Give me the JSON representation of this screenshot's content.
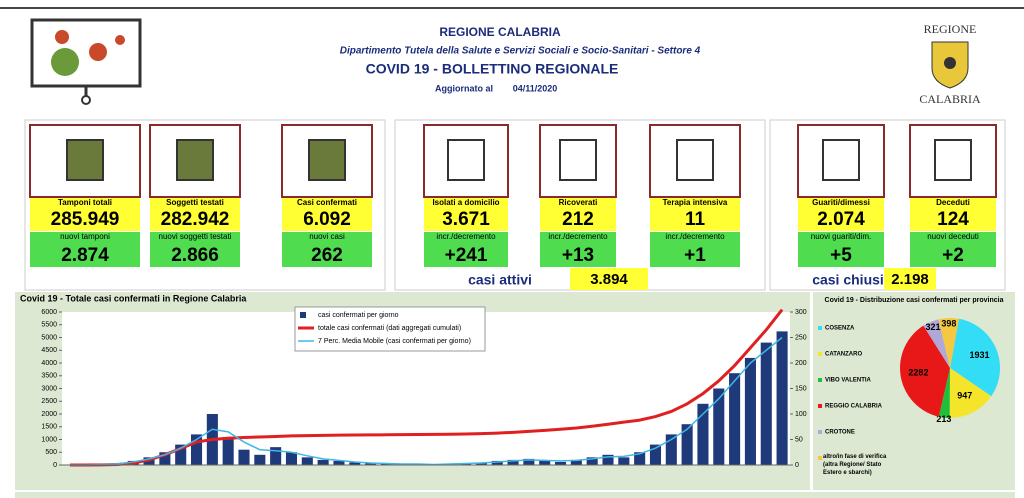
{
  "header": {
    "region": "REGIONE CALABRIA",
    "department": "Dipartimento Tutela della Salute e Servizi Sociali e Socio-Sanitari - Settore 4",
    "title": "COVID 19 - BOLLETTINO REGIONALE",
    "updated_label": "Aggiornato al",
    "updated_date": "04/11/2020",
    "logo_top": "REGIONE",
    "logo_bottom": "CALABRIA"
  },
  "cards": [
    {
      "label": "Tamponi totali",
      "value": "285.949",
      "sublabel": "nuovi tamponi",
      "subvalue": "2.874"
    },
    {
      "label": "Soggetti testati",
      "value": "282.942",
      "sublabel": "nuovi soggetti testati",
      "subvalue": "2.866"
    },
    {
      "label": "Casi confermati",
      "value": "6.092",
      "sublabel": "nuovi casi",
      "subvalue": "262"
    },
    {
      "label": "Isolati a domicilio",
      "value": "3.671",
      "sublabel": "incr./decremento",
      "subvalue": "+241"
    },
    {
      "label": "Ricoverati",
      "value": "212",
      "sublabel": "incr./decremento",
      "subvalue": "+13"
    },
    {
      "label": "Terapia intensiva",
      "value": "11",
      "sublabel": "incr./decremento",
      "subvalue": "+1"
    },
    {
      "label": "Guariti/dimessi",
      "value": "2.074",
      "sublabel": "nuovi guariti/dim.",
      "subvalue": "+5"
    },
    {
      "label": "Deceduti",
      "value": "124",
      "sublabel": "nuovi deceduti",
      "subvalue": "+2"
    }
  ],
  "active": {
    "label": "casi attivi",
    "value": "3.894"
  },
  "closed": {
    "label": "casi chiusi",
    "value": "2.198"
  },
  "chart_data": [
    {
      "type": "bar-line",
      "title": "Covid 19 - Totale casi confermati in Regione Calabria",
      "ylim": [
        0,
        6000
      ],
      "yticks": [
        0,
        500,
        1000,
        1500,
        2000,
        2500,
        3000,
        3500,
        4000,
        4500,
        5000,
        5500,
        6000
      ],
      "y2lim": [
        0,
        300
      ],
      "y2ticks": [
        0,
        50,
        100,
        150,
        200,
        250,
        300
      ],
      "series": [
        {
          "name": "casi confermati per giorno",
          "type": "bar",
          "axis": "y2",
          "color": "#1f3a7a",
          "values": [
            0,
            0,
            1,
            3,
            8,
            15,
            25,
            40,
            60,
            100,
            55,
            30,
            20,
            35,
            25,
            15,
            10,
            8,
            5,
            3,
            2,
            2,
            1,
            1,
            2,
            3,
            5,
            8,
            10,
            12,
            8,
            6,
            10,
            15,
            20,
            15,
            25,
            40,
            60,
            80,
            120,
            150,
            180,
            210,
            240,
            262
          ]
        },
        {
          "name": "totale casi confermati (dati aggregati cumulati)",
          "type": "line",
          "color": "#e02020",
          "values": [
            0,
            0,
            5,
            20,
            80,
            200,
            400,
            650,
            900,
            1000,
            1050,
            1080,
            1100,
            1120,
            1140,
            1150,
            1160,
            1170,
            1175,
            1180,
            1185,
            1190,
            1195,
            1200,
            1205,
            1215,
            1230,
            1250,
            1280,
            1320,
            1360,
            1400,
            1450,
            1520,
            1600,
            1680,
            1760,
            1900,
            2100,
            2400,
            2800,
            3300,
            3900,
            4600,
            5300,
            6092
          ]
        },
        {
          "name": "7 Perc. Media Mobile (casi confermati per giorno)",
          "type": "line",
          "axis": "y2",
          "color": "#41b6e6",
          "values": [
            0,
            0,
            1,
            2,
            6,
            12,
            20,
            33,
            50,
            70,
            65,
            45,
            30,
            28,
            25,
            18,
            12,
            9,
            6,
            4,
            3,
            2,
            2,
            1,
            2,
            3,
            4,
            6,
            8,
            10,
            9,
            8,
            9,
            12,
            16,
            17,
            22,
            33,
            50,
            70,
            100,
            130,
            165,
            200,
            225,
            250
          ]
        }
      ]
    },
    {
      "type": "pie",
      "title": "Covid 19 - Distribuzione casi confermati per provincia",
      "categories": [
        "COSENZA",
        "CATANZARO",
        "VIBO VALENTIA",
        "REGGIO CALABRIA",
        "CROTONE",
        "altro/in fase di verifica (altra Regione/ Stato Estero e sbarchi)"
      ],
      "colors": [
        "#33ddf5",
        "#f5e52a",
        "#1fbf3a",
        "#e81818",
        "#b0a8d8",
        "#f5c842"
      ],
      "values": [
        1931,
        947,
        213,
        2282,
        321,
        398
      ]
    }
  ]
}
